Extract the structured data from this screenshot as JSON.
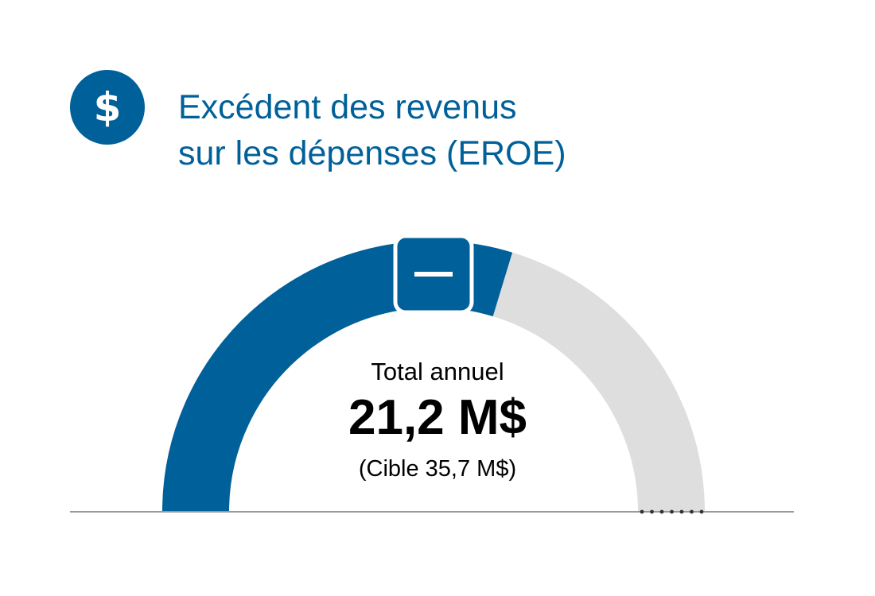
{
  "header": {
    "icon": "dollar-icon",
    "icon_glyph": "$",
    "title_line1": "Excédent des revenus",
    "title_line2": "sur les dépenses (EROE)"
  },
  "status": {
    "icon": "minus-icon"
  },
  "chart_data": {
    "type": "gauge",
    "title": "Excédent des revenus sur les dépenses (EROE)",
    "label": "Total annuel",
    "value": 21.2,
    "value_display": "21,2 M$",
    "target": 35.7,
    "target_display": "(Cible 35,7 M$)",
    "range": [
      0,
      35.7
    ],
    "unit": "M$",
    "colors": {
      "filled": "#00609a",
      "remaining": "#dedede",
      "baseline": "#999999",
      "dots": "#333333"
    }
  }
}
